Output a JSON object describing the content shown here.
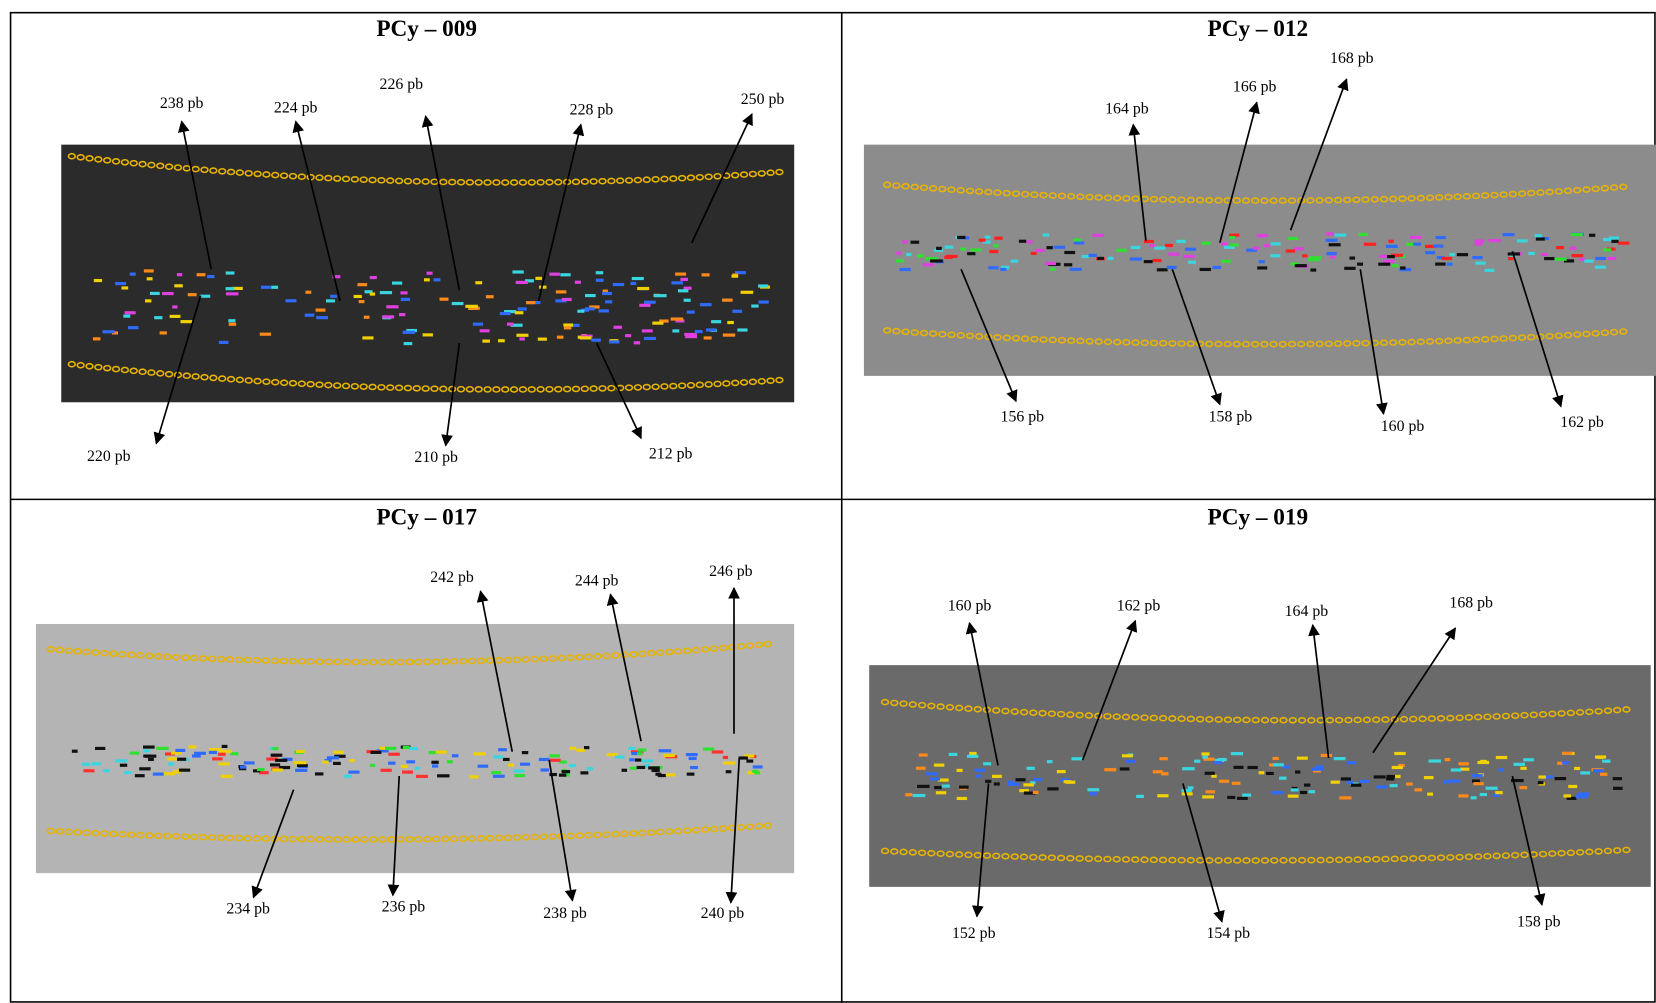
{
  "panels": [
    {
      "title": "PCy – 009",
      "labels": [
        "238 pb",
        "224 pb",
        "226 pb",
        "228 pb",
        "250 pb",
        "220 pb",
        "210 pb",
        "212 pb"
      ]
    },
    {
      "title": "PCy – 012",
      "labels": [
        "164 pb",
        "166 pb",
        "168 pb",
        "156 pb",
        "158 pb",
        "160 pb",
        "162 pb"
      ]
    },
    {
      "title": "PCy – 017",
      "labels": [
        "242 pb",
        "244 pb",
        "246 pb",
        "234 pb",
        "236 pb",
        "238 pb",
        "240 pb"
      ]
    },
    {
      "title": "PCy – 019",
      "labels": [
        "160 pb",
        "162 pb",
        "164 pb",
        "168 pb",
        "152 pb",
        "154 pb",
        "158 pb"
      ]
    }
  ]
}
